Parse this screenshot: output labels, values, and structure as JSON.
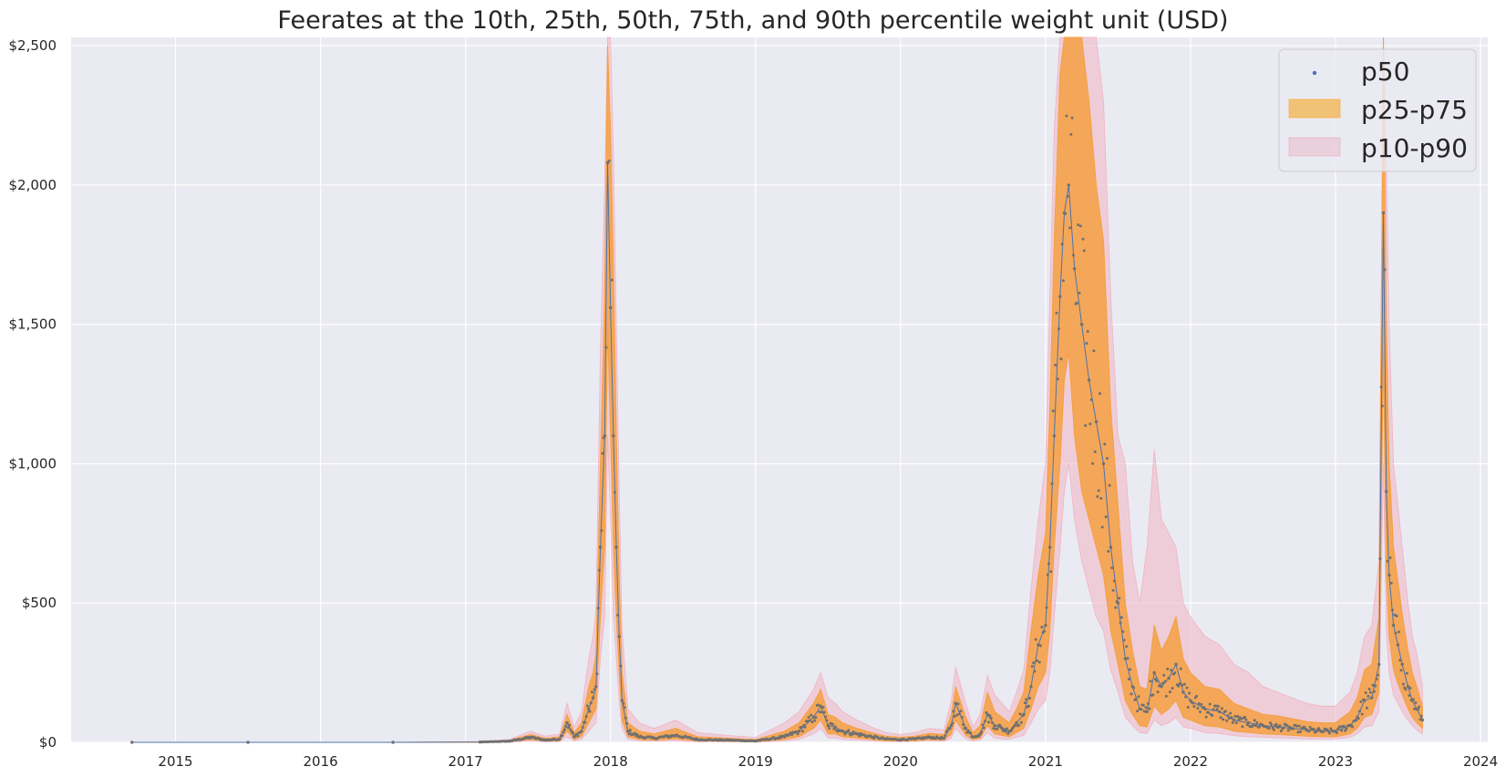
{
  "chart_data": {
    "type": "area",
    "title": "Feerates at the 10th, 25th, 50th, 75th, and 90th percentile weight unit (USD)",
    "xlabel": "",
    "ylabel": "",
    "x_axis": {
      "range": [
        2014.28,
        2024.05
      ],
      "ticks": [
        2015,
        2016,
        2017,
        2018,
        2019,
        2020,
        2021,
        2022,
        2023,
        2024
      ],
      "tick_labels": [
        "2015",
        "2016",
        "2017",
        "2018",
        "2019",
        "2020",
        "2021",
        "2022",
        "2023",
        "2024"
      ]
    },
    "y_axis": {
      "range": [
        0,
        2530
      ],
      "ticks": [
        0,
        500,
        1000,
        1500,
        2000,
        2500
      ],
      "tick_labels": [
        "$0",
        "$500",
        "$1,000",
        "$1,500",
        "$2,000",
        "$2,500"
      ]
    },
    "grid": true,
    "legend": {
      "placement": "top-right",
      "entries": [
        {
          "label": "p50",
          "kind": "marker",
          "color": "#4c72b0"
        },
        {
          "label": "p25-p75",
          "kind": "patch",
          "color": "#f5a623"
        },
        {
          "label": "p10-p90",
          "kind": "patch",
          "color": "#e8a0b0"
        }
      ]
    },
    "colors": {
      "background": "#eaeaf2",
      "grid": "#ffffff",
      "p50": "#4c72b0",
      "p50_points": "#707070",
      "p25_p75": "#f5a042",
      "p10_p90": "#f0b4c2"
    },
    "series": [
      {
        "name": "p50",
        "x": [
          2014.7,
          2015.5,
          2016.5,
          2017.1,
          2017.3,
          2017.45,
          2017.55,
          2017.65,
          2017.7,
          2017.75,
          2017.8,
          2017.85,
          2017.88,
          2017.9,
          2017.93,
          2017.96,
          2017.98,
          2018.0,
          2018.02,
          2018.04,
          2018.06,
          2018.08,
          2018.12,
          2018.2,
          2018.3,
          2018.45,
          2018.6,
          2018.8,
          2019.0,
          2019.2,
          2019.3,
          2019.4,
          2019.45,
          2019.5,
          2019.55,
          2019.6,
          2019.7,
          2019.8,
          2019.9,
          2020.0,
          2020.1,
          2020.2,
          2020.3,
          2020.35,
          2020.38,
          2020.45,
          2020.5,
          2020.55,
          2020.6,
          2020.65,
          2020.7,
          2020.75,
          2020.8,
          2020.85,
          2020.9,
          2020.95,
          2021.0,
          2021.03,
          2021.06,
          2021.1,
          2021.13,
          2021.16,
          2021.2,
          2021.25,
          2021.3,
          2021.35,
          2021.4,
          2021.45,
          2021.5,
          2021.55,
          2021.6,
          2021.65,
          2021.7,
          2021.75,
          2021.8,
          2021.85,
          2021.9,
          2021.95,
          2022.0,
          2022.1,
          2022.2,
          2022.3,
          2022.4,
          2022.5,
          2022.6,
          2022.7,
          2022.8,
          2022.9,
          2023.0,
          2023.1,
          2023.15,
          2023.2,
          2023.25,
          2023.3,
          2023.33,
          2023.35,
          2023.37,
          2023.4,
          2023.43,
          2023.46,
          2023.5,
          2023.53,
          2023.56,
          2023.6
        ],
        "values": [
          0,
          0,
          0,
          1,
          4,
          18,
          8,
          12,
          70,
          20,
          40,
          120,
          160,
          200,
          700,
          1100,
          2080,
          1560,
          1100,
          700,
          380,
          150,
          40,
          20,
          15,
          25,
          10,
          8,
          5,
          20,
          40,
          90,
          130,
          60,
          55,
          40,
          30,
          20,
          12,
          10,
          12,
          18,
          15,
          60,
          140,
          50,
          20,
          30,
          100,
          60,
          50,
          40,
          70,
          100,
          200,
          350,
          420,
          700,
          1100,
          1600,
          1900,
          2000,
          1700,
          1500,
          1300,
          1150,
          1000,
          700,
          500,
          300,
          200,
          120,
          110,
          250,
          200,
          230,
          280,
          180,
          150,
          120,
          110,
          80,
          70,
          60,
          55,
          50,
          45,
          40,
          40,
          60,
          90,
          150,
          160,
          280,
          1900,
          900,
          600,
          420,
          350,
          280,
          200,
          150,
          120,
          80
        ]
      },
      {
        "name": "p25-p75",
        "x": [
          2014.7,
          2015.5,
          2016.5,
          2017.1,
          2017.3,
          2017.45,
          2017.55,
          2017.65,
          2017.7,
          2017.75,
          2017.8,
          2017.85,
          2017.88,
          2017.9,
          2017.93,
          2017.96,
          2017.98,
          2018.0,
          2018.02,
          2018.04,
          2018.06,
          2018.08,
          2018.12,
          2018.2,
          2018.3,
          2018.45,
          2018.6,
          2018.8,
          2019.0,
          2019.2,
          2019.3,
          2019.4,
          2019.45,
          2019.5,
          2019.55,
          2019.6,
          2019.7,
          2019.8,
          2019.9,
          2020.0,
          2020.1,
          2020.2,
          2020.3,
          2020.35,
          2020.38,
          2020.45,
          2020.5,
          2020.55,
          2020.6,
          2020.65,
          2020.7,
          2020.75,
          2020.8,
          2020.85,
          2020.9,
          2020.95,
          2021.0,
          2021.03,
          2021.06,
          2021.1,
          2021.13,
          2021.16,
          2021.2,
          2021.25,
          2021.3,
          2021.35,
          2021.4,
          2021.45,
          2021.5,
          2021.55,
          2021.6,
          2021.65,
          2021.7,
          2021.75,
          2021.8,
          2021.85,
          2021.9,
          2021.95,
          2022.0,
          2022.1,
          2022.2,
          2022.3,
          2022.4,
          2022.5,
          2022.6,
          2022.7,
          2022.8,
          2022.9,
          2023.0,
          2023.1,
          2023.15,
          2023.2,
          2023.25,
          2023.3,
          2023.33,
          2023.35,
          2023.37,
          2023.4,
          2023.43,
          2023.46,
          2023.5,
          2023.53,
          2023.56,
          2023.6
        ],
        "low": [
          0,
          0,
          0,
          0,
          2,
          10,
          4,
          6,
          40,
          10,
          20,
          70,
          100,
          120,
          450,
          700,
          1500,
          1100,
          700,
          450,
          250,
          80,
          20,
          10,
          8,
          12,
          5,
          4,
          2,
          10,
          20,
          50,
          80,
          30,
          30,
          20,
          15,
          10,
          6,
          5,
          6,
          10,
          8,
          30,
          80,
          25,
          10,
          15,
          60,
          30,
          25,
          20,
          35,
          50,
          120,
          200,
          250,
          400,
          700,
          1000,
          1300,
          1400,
          1100,
          900,
          800,
          700,
          600,
          400,
          280,
          150,
          100,
          60,
          55,
          130,
          100,
          120,
          150,
          90,
          80,
          60,
          55,
          40,
          35,
          30,
          28,
          25,
          22,
          20,
          20,
          30,
          50,
          90,
          100,
          180,
          1400,
          600,
          380,
          260,
          210,
          170,
          120,
          90,
          70,
          50
        ],
        "high": [
          0,
          0,
          0,
          2,
          7,
          28,
          14,
          20,
          100,
          35,
          70,
          200,
          250,
          320,
          1000,
          1600,
          2500,
          2200,
          1700,
          1100,
          600,
          250,
          70,
          40,
          30,
          50,
          20,
          15,
          10,
          40,
          70,
          140,
          190,
          100,
          90,
          70,
          50,
          35,
          22,
          18,
          22,
          32,
          28,
          100,
          200,
          90,
          35,
          60,
          180,
          110,
          90,
          70,
          120,
          180,
          400,
          600,
          750,
          1200,
          1800,
          2400,
          2530,
          2530,
          2530,
          2530,
          2300,
          2000,
          1800,
          1200,
          850,
          500,
          330,
          200,
          190,
          420,
          330,
          380,
          450,
          300,
          250,
          200,
          190,
          140,
          120,
          100,
          95,
          85,
          75,
          70,
          70,
          110,
          160,
          260,
          280,
          450,
          2530,
          1500,
          1000,
          700,
          580,
          460,
          330,
          250,
          200,
          130
        ]
      },
      {
        "name": "p10-p90",
        "x": [
          2014.7,
          2015.5,
          2016.5,
          2017.1,
          2017.3,
          2017.45,
          2017.55,
          2017.65,
          2017.7,
          2017.75,
          2017.8,
          2017.85,
          2017.88,
          2017.9,
          2017.93,
          2017.96,
          2017.98,
          2018.0,
          2018.02,
          2018.04,
          2018.06,
          2018.08,
          2018.12,
          2018.2,
          2018.3,
          2018.45,
          2018.6,
          2018.8,
          2019.0,
          2019.2,
          2019.3,
          2019.4,
          2019.45,
          2019.5,
          2019.55,
          2019.6,
          2019.7,
          2019.8,
          2019.9,
          2020.0,
          2020.1,
          2020.2,
          2020.3,
          2020.35,
          2020.38,
          2020.45,
          2020.5,
          2020.55,
          2020.6,
          2020.65,
          2020.7,
          2020.75,
          2020.8,
          2020.85,
          2020.9,
          2020.95,
          2021.0,
          2021.03,
          2021.06,
          2021.1,
          2021.13,
          2021.16,
          2021.2,
          2021.25,
          2021.3,
          2021.35,
          2021.4,
          2021.45,
          2021.5,
          2021.55,
          2021.6,
          2021.65,
          2021.7,
          2021.75,
          2021.8,
          2021.85,
          2021.9,
          2021.95,
          2022.0,
          2022.1,
          2022.2,
          2022.3,
          2022.4,
          2022.5,
          2022.6,
          2022.7,
          2022.8,
          2022.9,
          2023.0,
          2023.1,
          2023.15,
          2023.2,
          2023.25,
          2023.3,
          2023.33,
          2023.35,
          2023.37,
          2023.4,
          2023.43,
          2023.46,
          2023.5,
          2023.53,
          2023.56,
          2023.6
        ],
        "low": [
          0,
          0,
          0,
          0,
          1,
          5,
          2,
          3,
          20,
          5,
          10,
          40,
          60,
          70,
          300,
          450,
          1100,
          800,
          450,
          300,
          150,
          50,
          10,
          5,
          4,
          6,
          2,
          2,
          1,
          5,
          10,
          30,
          50,
          15,
          15,
          10,
          8,
          5,
          3,
          2,
          3,
          5,
          4,
          15,
          50,
          12,
          5,
          8,
          35,
          15,
          12,
          10,
          18,
          25,
          70,
          120,
          150,
          250,
          450,
          700,
          900,
          1000,
          800,
          650,
          550,
          450,
          400,
          260,
          180,
          90,
          60,
          35,
          32,
          80,
          60,
          70,
          90,
          55,
          50,
          35,
          32,
          24,
          20,
          18,
          16,
          14,
          12,
          12,
          12,
          18,
          30,
          55,
          60,
          110,
          1000,
          400,
          250,
          170,
          140,
          110,
          80,
          60,
          45,
          30
        ],
        "high": [
          0,
          0,
          0,
          3,
          10,
          40,
          22,
          30,
          140,
          55,
          110,
          300,
          380,
          480,
          1400,
          2000,
          2530,
          2530,
          2100,
          1500,
          900,
          400,
          120,
          70,
          50,
          80,
          35,
          25,
          18,
          70,
          110,
          190,
          250,
          160,
          140,
          110,
          80,
          55,
          35,
          28,
          35,
          50,
          45,
          150,
          270,
          140,
          55,
          100,
          240,
          170,
          140,
          110,
          180,
          260,
          550,
          800,
          1000,
          1600,
          2200,
          2530,
          2530,
          2530,
          2530,
          2530,
          2530,
          2530,
          2300,
          1600,
          1100,
          1000,
          650,
          500,
          700,
          1050,
          800,
          750,
          700,
          500,
          450,
          380,
          350,
          280,
          250,
          200,
          180,
          160,
          140,
          130,
          130,
          180,
          250,
          380,
          420,
          650,
          2530,
          2100,
          1500,
          1000,
          850,
          700,
          500,
          380,
          320,
          200
        ]
      }
    ]
  }
}
